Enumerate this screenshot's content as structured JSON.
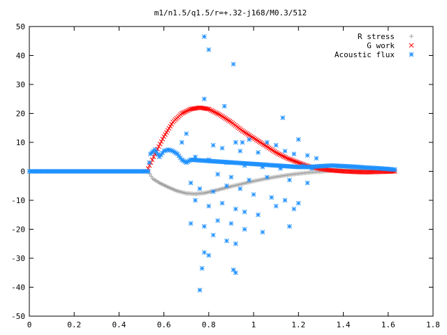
{
  "chart_data": {
    "type": "scatter",
    "title": "m1/n1.5/q1.5/r=+.32-j168/M0.3/512",
    "xlabel": "",
    "ylabel": "",
    "xlim": [
      0,
      1.8
    ],
    "ylim": [
      -50,
      50
    ],
    "x_ticks": [
      "0",
      "0.2",
      "0.4",
      "0.6",
      "0.8",
      "1",
      "1.2",
      "1.4",
      "1.6",
      "1.8"
    ],
    "y_ticks": [
      "50",
      "40",
      "30",
      "20",
      "10",
      "0",
      "-10",
      "-20",
      "-30",
      "-40",
      "-50"
    ],
    "grid": false,
    "legend_position": "top-right",
    "series": [
      {
        "name": "R stress",
        "marker": "+",
        "color": "#a0a0a0",
        "points": [
          [
            0,
            0
          ],
          [
            0.1,
            0
          ],
          [
            0.2,
            0
          ],
          [
            0.3,
            0
          ],
          [
            0.4,
            0
          ],
          [
            0.5,
            0
          ],
          [
            0.53,
            0
          ],
          [
            0.55,
            -2.5
          ],
          [
            0.58,
            -4
          ],
          [
            0.62,
            -5.5
          ],
          [
            0.66,
            -6.8
          ],
          [
            0.7,
            -7.6
          ],
          [
            0.74,
            -7.8
          ],
          [
            0.78,
            -7.5
          ],
          [
            0.82,
            -6.8
          ],
          [
            0.86,
            -6
          ],
          [
            0.9,
            -5.2
          ],
          [
            0.95,
            -4.3
          ],
          [
            1.0,
            -3.4
          ],
          [
            1.05,
            -2.6
          ],
          [
            1.1,
            -1.9
          ],
          [
            1.15,
            -1.3
          ],
          [
            1.2,
            -0.8
          ],
          [
            1.25,
            -0.4
          ],
          [
            1.3,
            -0.1
          ],
          [
            1.35,
            0.3
          ],
          [
            1.4,
            0.6
          ],
          [
            1.45,
            0.7
          ],
          [
            1.5,
            0.6
          ],
          [
            1.55,
            0.5
          ],
          [
            1.6,
            0.3
          ],
          [
            1.63,
            0.2
          ]
        ]
      },
      {
        "name": "G work",
        "marker": "x",
        "color": "#ff0000",
        "points": [
          [
            0.53,
            1
          ],
          [
            0.56,
            6
          ],
          [
            0.6,
            12
          ],
          [
            0.64,
            17
          ],
          [
            0.68,
            20
          ],
          [
            0.72,
            21.5
          ],
          [
            0.76,
            22
          ],
          [
            0.8,
            21.5
          ],
          [
            0.85,
            19.5
          ],
          [
            0.9,
            17
          ],
          [
            0.95,
            14
          ],
          [
            1.0,
            11.5
          ],
          [
            1.05,
            9
          ],
          [
            1.1,
            6.5
          ],
          [
            1.15,
            4.5
          ],
          [
            1.2,
            3
          ],
          [
            1.25,
            1.6
          ],
          [
            1.3,
            0.8
          ],
          [
            1.35,
            0.3
          ],
          [
            1.4,
            0
          ],
          [
            1.45,
            -0.2
          ],
          [
            1.5,
            -0.3
          ],
          [
            1.55,
            -0.2
          ],
          [
            1.6,
            -0.1
          ],
          [
            1.63,
            0
          ]
        ]
      },
      {
        "name": "Acoustic flux",
        "marker": "*",
        "color": "#1e90ff",
        "curve": [
          [
            0,
            0
          ],
          [
            0.1,
            0
          ],
          [
            0.2,
            0
          ],
          [
            0.3,
            0
          ],
          [
            0.4,
            0
          ],
          [
            0.5,
            0
          ],
          [
            0.53,
            0
          ],
          [
            0.54,
            6
          ],
          [
            0.56,
            7.5
          ],
          [
            0.58,
            5
          ],
          [
            0.6,
            7
          ],
          [
            0.62,
            7.5
          ],
          [
            0.64,
            7
          ],
          [
            0.66,
            6
          ],
          [
            0.68,
            4
          ],
          [
            0.7,
            3
          ],
          [
            0.72,
            4
          ],
          [
            1.2,
            1.5
          ],
          [
            1.25,
            1.5
          ],
          [
            1.3,
            1.8
          ],
          [
            1.35,
            2
          ],
          [
            1.4,
            1.8
          ],
          [
            1.45,
            1.6
          ],
          [
            1.5,
            1.3
          ],
          [
            1.55,
            1.1
          ],
          [
            1.6,
            0.8
          ],
          [
            1.63,
            0.6
          ]
        ],
        "scatter": [
          [
            0.78,
            46.5
          ],
          [
            0.8,
            42
          ],
          [
            0.91,
            37
          ],
          [
            0.78,
            25
          ],
          [
            0.87,
            22.5
          ],
          [
            1.13,
            18.5
          ],
          [
            0.7,
            13
          ],
          [
            0.68,
            10
          ],
          [
            0.98,
            11
          ],
          [
            0.95,
            10
          ],
          [
            0.92,
            10
          ],
          [
            1.06,
            10
          ],
          [
            1.1,
            9
          ],
          [
            1.2,
            11
          ],
          [
            0.82,
            9
          ],
          [
            0.86,
            8
          ],
          [
            0.94,
            7
          ],
          [
            1.02,
            6.5
          ],
          [
            1.14,
            7
          ],
          [
            1.18,
            6
          ],
          [
            1.24,
            5.5
          ],
          [
            1.28,
            4.5
          ],
          [
            0.74,
            5
          ],
          [
            0.8,
            4
          ],
          [
            0.88,
            3
          ],
          [
            0.96,
            2
          ],
          [
            1.04,
            1.5
          ],
          [
            1.12,
            1
          ],
          [
            1.22,
            2
          ],
          [
            1.26,
            1
          ],
          [
            0.84,
            -1
          ],
          [
            0.9,
            -2
          ],
          [
            0.98,
            -3
          ],
          [
            1.06,
            -2
          ],
          [
            1.16,
            -3
          ],
          [
            1.24,
            -4
          ],
          [
            0.72,
            -4
          ],
          [
            0.76,
            -6
          ],
          [
            0.82,
            -7
          ],
          [
            0.88,
            -5
          ],
          [
            0.94,
            -6
          ],
          [
            1.0,
            -8
          ],
          [
            1.08,
            -9
          ],
          [
            1.14,
            -10
          ],
          [
            1.2,
            -11
          ],
          [
            0.74,
            -10
          ],
          [
            0.8,
            -12
          ],
          [
            0.86,
            -11
          ],
          [
            0.92,
            -13
          ],
          [
            0.96,
            -14
          ],
          [
            1.02,
            -15
          ],
          [
            1.1,
            -12
          ],
          [
            1.18,
            -13
          ],
          [
            0.72,
            -18
          ],
          [
            0.78,
            -19
          ],
          [
            0.84,
            -17
          ],
          [
            0.9,
            -18
          ],
          [
            0.96,
            -20
          ],
          [
            1.04,
            -21
          ],
          [
            1.16,
            -19
          ],
          [
            0.82,
            -22
          ],
          [
            0.88,
            -24
          ],
          [
            0.92,
            -25
          ],
          [
            0.78,
            -28
          ],
          [
            0.8,
            -29
          ],
          [
            0.77,
            -33.5
          ],
          [
            0.91,
            -34
          ],
          [
            0.92,
            -35
          ],
          [
            0.76,
            -41
          ]
        ]
      }
    ]
  }
}
